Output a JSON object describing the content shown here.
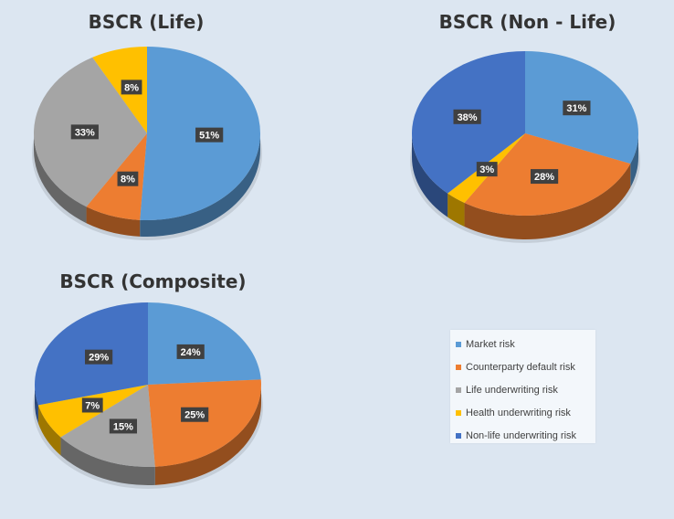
{
  "chart_data": [
    {
      "type": "pie",
      "title": "BSCR (Life)",
      "slices": [
        {
          "label": "Market risk",
          "value": 51,
          "display": "51%"
        },
        {
          "label": "Counterparty default risk",
          "value": 8,
          "display": "8%"
        },
        {
          "label": "Life underwriting risk",
          "value": 33,
          "display": "33%"
        },
        {
          "label": "Health underwriting risk",
          "value": 8,
          "display": "8%"
        }
      ]
    },
    {
      "type": "pie",
      "title": "BSCR (Non - Life)",
      "slices": [
        {
          "label": "Market risk",
          "value": 31,
          "display": "31%"
        },
        {
          "label": "Counterparty default risk",
          "value": 28,
          "display": "28%"
        },
        {
          "label": "Health underwriting risk",
          "value": 3,
          "display": "3%"
        },
        {
          "label": "Non-life underwriting risk",
          "value": 38,
          "display": "38%"
        }
      ]
    },
    {
      "type": "pie",
      "title": "BSCR (Composite)",
      "slices": [
        {
          "label": "Market risk",
          "value": 24,
          "display": "24%"
        },
        {
          "label": "Counterparty default risk",
          "value": 25,
          "display": "25%"
        },
        {
          "label": "Life underwriting risk",
          "value": 15,
          "display": "15%"
        },
        {
          "label": "Health underwriting risk",
          "value": 7,
          "display": "7%"
        },
        {
          "label": "Non-life underwriting risk",
          "value": 29,
          "display": "29%"
        }
      ]
    }
  ],
  "legend": {
    "placement": "bottom-right",
    "items": [
      {
        "label": "Market risk",
        "color": "#5B9BD5"
      },
      {
        "label": "Counterparty default risk",
        "color": "#ED7D31"
      },
      {
        "label": "Life underwriting risk",
        "color": "#A5A5A5"
      },
      {
        "label": "Health underwriting risk",
        "color": "#FFC000"
      },
      {
        "label": "Non-life underwriting risk",
        "color": "#4472C4"
      }
    ]
  }
}
